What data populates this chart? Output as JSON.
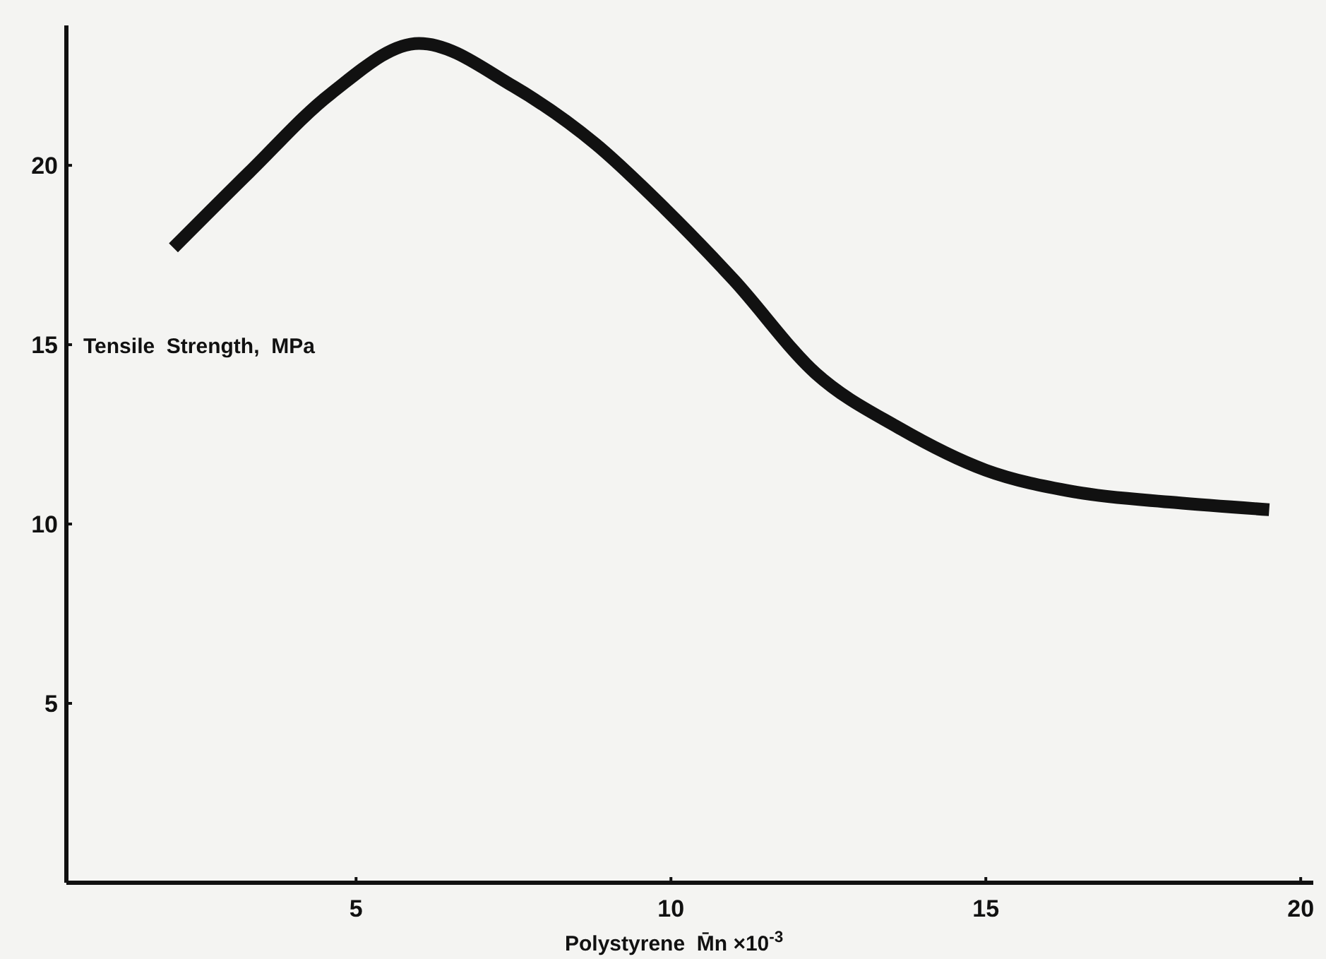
{
  "chart_data": {
    "type": "line",
    "xlabel": "Polystyrene  M̄n ×10$^{-3}$",
    "ylabel": "Tensile  Strength,  MPa",
    "xlim": [
      0.4,
      20.2
    ],
    "ylim": [
      0,
      23.9
    ],
    "xticks": [
      5,
      10,
      15,
      20
    ],
    "yticks": [
      5,
      10,
      15,
      20
    ],
    "grid": false,
    "marker": "none",
    "line_style": "solid",
    "series": [
      {
        "color": "#111111",
        "x": [
          2.1,
          3.3,
          4.6,
          6.0,
          7.5,
          8.8,
          9.9,
          11.0,
          12.3,
          13.6,
          15.0,
          16.4,
          18.0,
          19.5
        ],
        "values": [
          17.7,
          19.8,
          22.0,
          23.4,
          22.2,
          20.6,
          18.8,
          16.8,
          14.2,
          12.7,
          11.5,
          10.9,
          10.6,
          10.4
        ]
      }
    ]
  }
}
